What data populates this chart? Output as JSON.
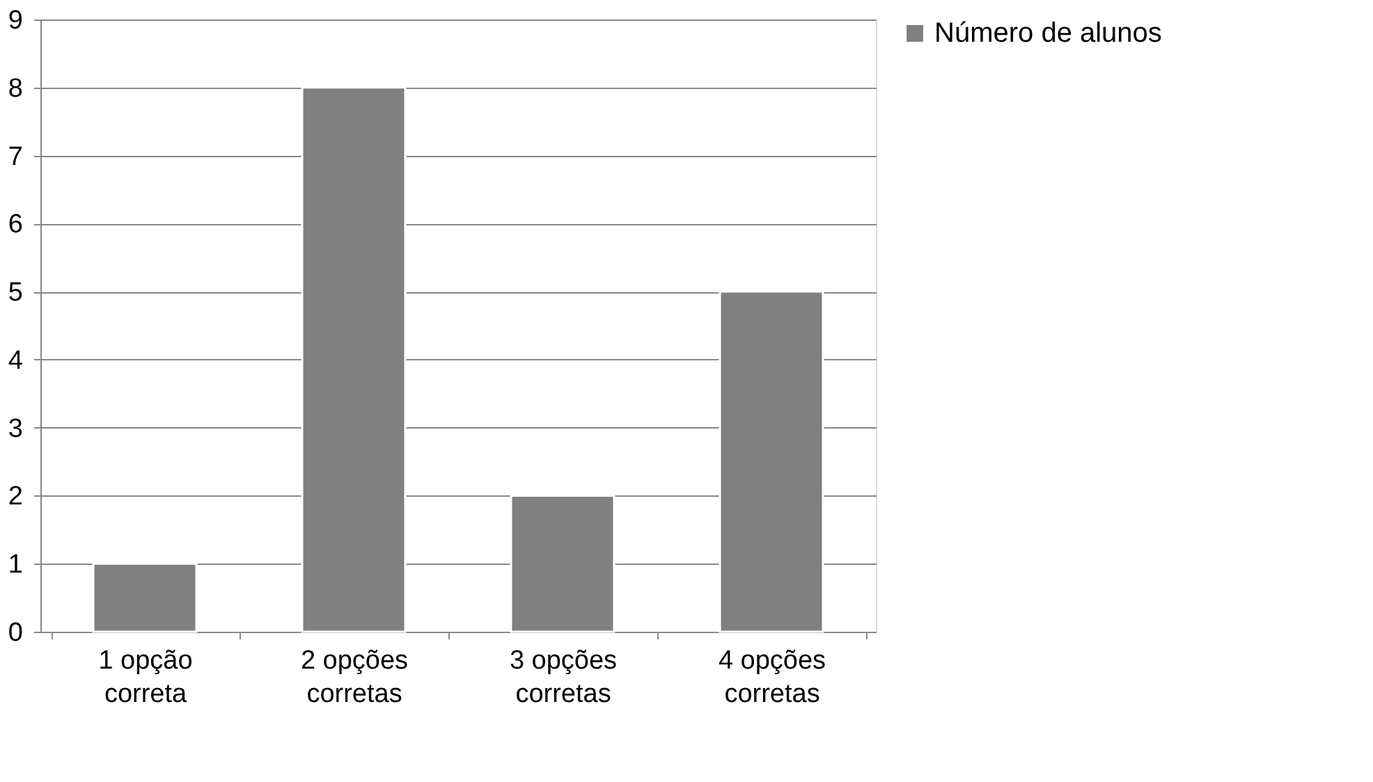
{
  "chart_data": {
    "type": "bar",
    "categories": [
      "1 opção correta",
      "2 opções corretas",
      "3 opções corretas",
      "4 opções corretas"
    ],
    "series": [
      {
        "name": "Número de alunos",
        "color": "#808080",
        "values": [
          1,
          8,
          2,
          5
        ]
      }
    ],
    "ylim": [
      0,
      9
    ],
    "yticks": [
      0,
      1,
      2,
      3,
      4,
      5,
      6,
      7,
      8,
      9
    ],
    "grid": "y",
    "legend": "right"
  }
}
